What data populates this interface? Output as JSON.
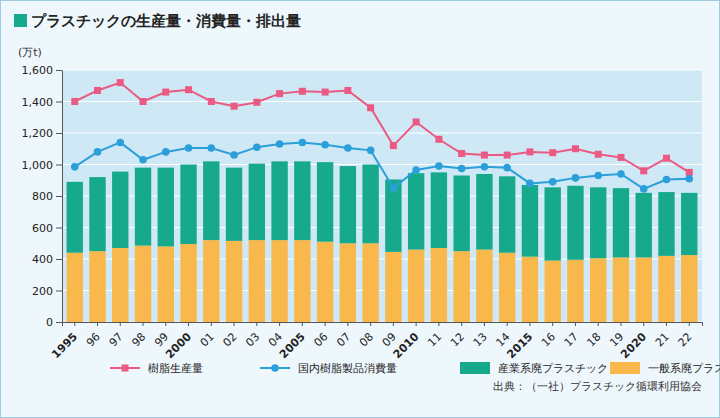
{
  "chart_data": {
    "type": "bar",
    "title": "プラスチックの生産量・消費量・排出量",
    "y_label": "(万t)",
    "source": "出典：（一社）プラスチック循環利用協会",
    "categories": [
      "1995",
      "96",
      "97",
      "98",
      "99",
      "2000",
      "01",
      "02",
      "03",
      "04",
      "2005",
      "06",
      "07",
      "08",
      "09",
      "2010",
      "11",
      "12",
      "13",
      "14",
      "2015",
      "16",
      "17",
      "18",
      "19",
      "2020",
      "21",
      "22"
    ],
    "stacked": true,
    "grid": true,
    "legend": "bottom",
    "ylim": [
      0,
      1600
    ],
    "yticks": [
      0,
      200,
      400,
      600,
      800,
      {
        "value": 1000,
        "label": "1,000"
      },
      {
        "value": 1200,
        "label": "1,200"
      },
      {
        "value": 1400,
        "label": "1,400"
      },
      {
        "value": 1600,
        "label": "1,600"
      }
    ],
    "series": [
      {
        "name": "樹脂生産量",
        "type": "line",
        "marker": "square",
        "color": "#ea5a82",
        "values": [
          1400,
          1470,
          1520,
          1400,
          1460,
          1475,
          1400,
          1370,
          1395,
          1450,
          1465,
          1460,
          1470,
          1360,
          1120,
          1270,
          1160,
          1070,
          1060,
          1060,
          1080,
          1075,
          1100,
          1065,
          1045,
          960,
          1040,
          950
        ]
      },
      {
        "name": "国内樹脂製品消費量",
        "type": "line",
        "marker": "circle",
        "color": "#2b9fda",
        "values": [
          985,
          1080,
          1140,
          1030,
          1080,
          1105,
          1105,
          1060,
          1110,
          1130,
          1140,
          1125,
          1105,
          1090,
          850,
          965,
          990,
          975,
          985,
          980,
          880,
          890,
          915,
          930,
          940,
          845,
          905,
          910
        ]
      },
      {
        "name": "産業系廃プラスチック",
        "type": "bar",
        "color": "#17a98c",
        "values": [
          450,
          470,
          485,
          495,
          500,
          505,
          500,
          465,
          485,
          500,
          500,
          505,
          490,
          500,
          460,
          485,
          480,
          480,
          480,
          485,
          455,
          465,
          470,
          450,
          440,
          410,
          405,
          395
        ]
      },
      {
        "name": "一般系廃プラスチック",
        "type": "bar",
        "color": "#f8b84c",
        "values": [
          440,
          450,
          470,
          485,
          480,
          495,
          520,
          515,
          520,
          520,
          520,
          510,
          500,
          500,
          445,
          460,
          470,
          450,
          460,
          440,
          415,
          390,
          395,
          405,
          410,
          410,
          420,
          425
        ]
      }
    ]
  }
}
